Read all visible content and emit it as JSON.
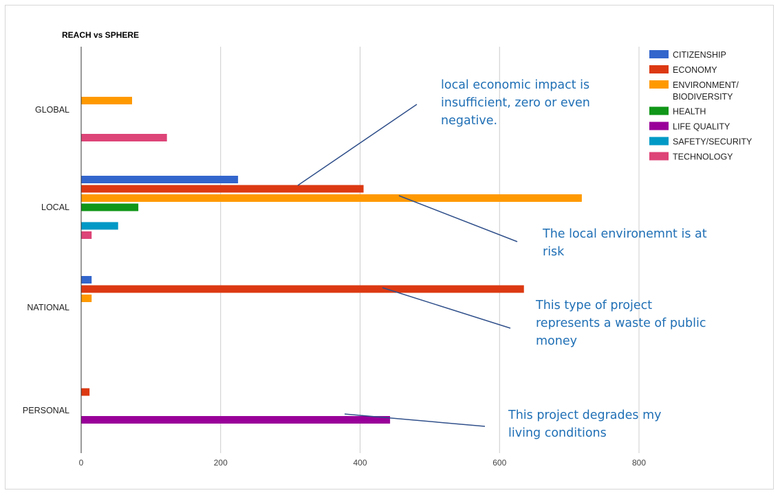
{
  "chart_data": {
    "type": "bar",
    "orientation": "horizontal",
    "title": "REACH vs SPHERE",
    "xlabel": "",
    "ylabel": "",
    "xlim": [
      0,
      800
    ],
    "xticks": [
      0,
      200,
      400,
      600,
      800
    ],
    "grid": true,
    "legend_position": "top-right",
    "categories": [
      "GLOBAL",
      "LOCAL",
      "NATIONAL",
      "PERSONAL"
    ],
    "series": [
      {
        "name": "CITIZENSHIP",
        "color": "#3366cc",
        "values": [
          0,
          225,
          15,
          0
        ]
      },
      {
        "name": "ECONOMY",
        "color": "#dc3912",
        "values": [
          0,
          405,
          635,
          12
        ]
      },
      {
        "name": "ENVIRONMENT/\nBIODIVERSITY",
        "color": "#ff9900",
        "values": [
          73,
          718,
          15,
          0
        ]
      },
      {
        "name": "HEALTH",
        "color": "#109618",
        "values": [
          0,
          82,
          0,
          0
        ]
      },
      {
        "name": "LIFE QUALITY",
        "color": "#990099",
        "values": [
          0,
          0,
          0,
          443
        ]
      },
      {
        "name": "SAFETY/SECURITY",
        "color": "#0099c6",
        "values": [
          0,
          53,
          0,
          0
        ]
      },
      {
        "name": "TECHNOLOGY",
        "color": "#dd4477",
        "values": [
          123,
          15,
          0,
          0
        ]
      }
    ],
    "annotations": [
      {
        "lines": [
          "local economic impact is",
          "insufficient, zero or even",
          "negative."
        ],
        "category": "LOCAL",
        "series": "ECONOMY"
      },
      {
        "lines": [
          "The local environemnt is at",
          "risk"
        ],
        "category": "LOCAL",
        "series": "ENVIRONMENT/\nBIODIVERSITY"
      },
      {
        "lines": [
          "This type of project",
          "represents a waste of public",
          "money"
        ],
        "category": "NATIONAL",
        "series": "ECONOMY"
      },
      {
        "lines": [
          "This project degrades my",
          "living conditions"
        ],
        "category": "PERSONAL",
        "series": "LIFE QUALITY"
      }
    ],
    "annotation_color": "#2f4f8a"
  }
}
